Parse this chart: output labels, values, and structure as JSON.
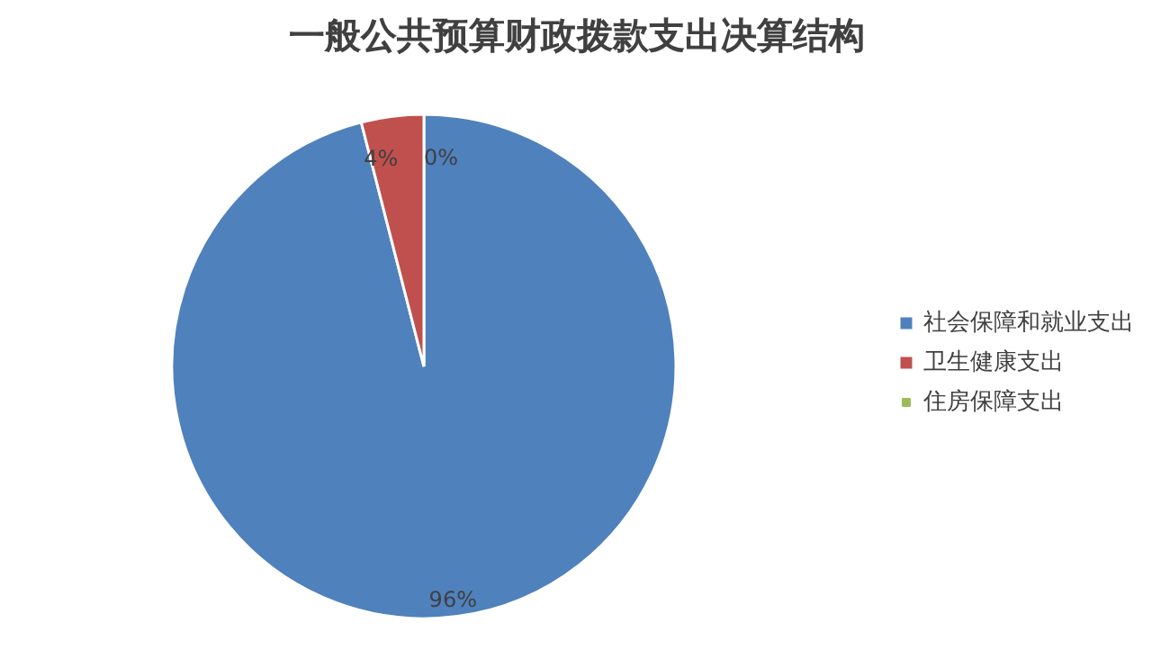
{
  "chart_data": {
    "type": "pie",
    "title": "一般公共预算财政拨款支出决算结构",
    "categories": [
      "社会保障和就业支出",
      "卫生健康支出",
      "住房保障支出"
    ],
    "values": [
      96,
      4,
      0
    ],
    "colors": [
      "#4f81bd",
      "#c0504d",
      "#9bbb59"
    ],
    "value_labels": [
      "96%",
      "4%",
      "0%"
    ],
    "legend": "right"
  }
}
